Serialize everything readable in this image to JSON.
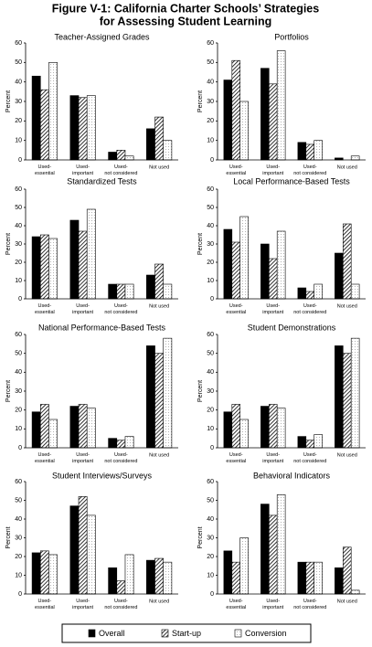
{
  "title": [
    "Figure V-1:  California Charter Schools’  Strategies",
    "for  Assessing Student Learning"
  ],
  "legend": [
    {
      "name": "Overall",
      "color": "#000000",
      "pattern": "solid"
    },
    {
      "name": "Start-up",
      "color": "#000000",
      "pattern": "hatch"
    },
    {
      "name": "Conversion",
      "color": "#000000",
      "pattern": "dots"
    }
  ],
  "chart_data": [
    {
      "type": "bar",
      "title": "Teacher-Assigned Grades",
      "ylabel": "Percent",
      "categories": [
        "Used-essential",
        "Used-important",
        "Used-not considered",
        "Not used"
      ],
      "series": [
        {
          "values": [
            43,
            33,
            4,
            16
          ]
        },
        {
          "values": [
            36,
            32,
            5,
            22
          ]
        },
        {
          "values": [
            50,
            33,
            2,
            10
          ]
        }
      ],
      "ylim": [
        0,
        60
      ],
      "yticks": [
        0,
        10,
        20,
        30,
        40,
        50,
        60
      ]
    },
    {
      "type": "bar",
      "title": "Portfolios",
      "ylabel": "Percent",
      "categories": [
        "Used-essential",
        "Used-important",
        "Used-not considered",
        "Not used"
      ],
      "series": [
        {
          "values": [
            41,
            47,
            9,
            1
          ]
        },
        {
          "values": [
            51,
            39,
            8,
            0
          ]
        },
        {
          "values": [
            30,
            56,
            10,
            2
          ]
        }
      ],
      "ylim": [
        0,
        60
      ],
      "yticks": [
        0,
        10,
        20,
        30,
        40,
        50,
        60
      ]
    },
    {
      "type": "bar",
      "title": "Standardized Tests",
      "ylabel": "Percent",
      "categories": [
        "Used-essential",
        "Used-important",
        "Used-not considered",
        "Not used"
      ],
      "series": [
        {
          "values": [
            34,
            43,
            8,
            13
          ]
        },
        {
          "values": [
            35,
            37,
            8,
            19
          ]
        },
        {
          "values": [
            33,
            49,
            8,
            8
          ]
        }
      ],
      "ylim": [
        0,
        60
      ],
      "yticks": [
        0,
        10,
        20,
        30,
        40,
        50,
        60
      ]
    },
    {
      "type": "bar",
      "title": "Local Performance-Based Tests",
      "ylabel": "Percent",
      "categories": [
        "Used-essential",
        "Used-important",
        "Used-not considered",
        "Not used"
      ],
      "series": [
        {
          "values": [
            38,
            30,
            6,
            25
          ]
        },
        {
          "values": [
            31,
            22,
            4,
            41
          ]
        },
        {
          "values": [
            45,
            37,
            8,
            8
          ]
        }
      ],
      "ylim": [
        0,
        60
      ],
      "yticks": [
        0,
        10,
        20,
        30,
        40,
        50,
        60
      ]
    },
    {
      "type": "bar",
      "title": "National Performance-Based Tests",
      "ylabel": "Percent",
      "categories": [
        "Used-essential",
        "Used-important",
        "Used-not considered",
        "Not used"
      ],
      "series": [
        {
          "values": [
            19,
            22,
            5,
            54
          ]
        },
        {
          "values": [
            23,
            23,
            4,
            50
          ]
        },
        {
          "values": [
            15,
            21,
            6,
            58
          ]
        }
      ],
      "ylim": [
        0,
        60
      ],
      "yticks": [
        0,
        10,
        20,
        30,
        40,
        50,
        60
      ]
    },
    {
      "type": "bar",
      "title": "Student Demonstrations",
      "ylabel": "Percent",
      "categories": [
        "Used-essential",
        "Used-important",
        "Used-not considered",
        "Not used"
      ],
      "series": [
        {
          "values": [
            19,
            22,
            6,
            54
          ]
        },
        {
          "values": [
            23,
            23,
            4,
            50
          ]
        },
        {
          "values": [
            15,
            21,
            7,
            58
          ]
        }
      ],
      "ylim": [
        0,
        60
      ],
      "yticks": [
        0,
        10,
        20,
        30,
        40,
        50,
        60
      ]
    },
    {
      "type": "bar",
      "title": "Student Interviews/Surveys",
      "ylabel": "Percent",
      "categories": [
        "Used-essential",
        "Used-important",
        "Used-not considered",
        "Not used"
      ],
      "series": [
        {
          "values": [
            22,
            47,
            14,
            18
          ]
        },
        {
          "values": [
            23,
            52,
            7,
            19
          ]
        },
        {
          "values": [
            21,
            42,
            21,
            17
          ]
        }
      ],
      "ylim": [
        0,
        60
      ],
      "yticks": [
        0,
        10,
        20,
        30,
        40,
        50,
        60
      ]
    },
    {
      "type": "bar",
      "title": "Behavioral Indicators",
      "ylabel": "Percent",
      "categories": [
        "Used-essential",
        "Used-important",
        "Used-not considered",
        "Not used"
      ],
      "series": [
        {
          "values": [
            23,
            48,
            17,
            14
          ]
        },
        {
          "values": [
            17,
            42,
            17,
            25
          ]
        },
        {
          "values": [
            30,
            53,
            17,
            2
          ]
        }
      ],
      "ylim": [
        0,
        60
      ],
      "yticks": [
        0,
        10,
        20,
        30,
        40,
        50,
        60
      ]
    }
  ]
}
